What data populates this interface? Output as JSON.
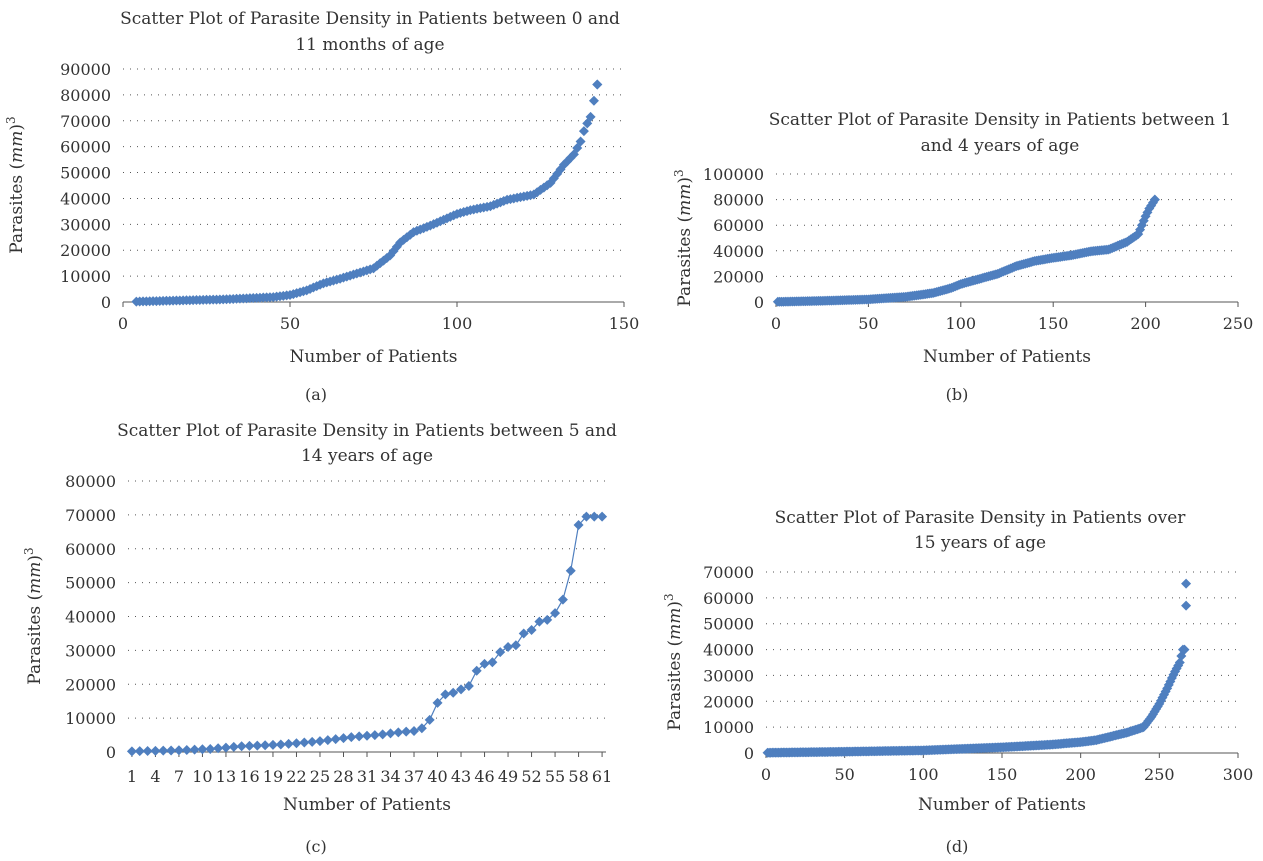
{
  "colors": {
    "marker": "#4f7fbf",
    "axis": "#555555",
    "text": "#333333"
  },
  "panels": [
    {
      "caption": "(a)",
      "title_lines": [
        "Scatter Plot of Parasite Density in Patients between 0 and",
        "11 months of age"
      ],
      "xlabel": "Number of Patients",
      "ylabel_main": "Parasites (",
      "ylabel_unit": "mm",
      "ylabel_close": ")",
      "ylabel_sup": "3",
      "xticks": [
        "0",
        "50",
        "100",
        "150"
      ],
      "yticks": [
        "0",
        "10000",
        "20000",
        "30000",
        "40000",
        "50000",
        "60000",
        "70000",
        "80000",
        "90000"
      ]
    },
    {
      "caption": "(b)",
      "title_lines": [
        "Scatter Plot of Parasite Density in Patients between 1",
        "and 4 years of age"
      ],
      "xlabel": "Number of Patients",
      "ylabel_main": "Parasites (",
      "ylabel_unit": "mm",
      "ylabel_close": ")",
      "ylabel_sup": "3",
      "xticks": [
        "0",
        "50",
        "100",
        "150",
        "200",
        "250"
      ],
      "yticks": [
        "0",
        "20000",
        "40000",
        "60000",
        "80000",
        "100000"
      ]
    },
    {
      "caption": "(c)",
      "title_lines": [
        "Scatter Plot of Parasite Density in Patients between 5 and",
        "14 years of age"
      ],
      "xlabel": "Number of Patients",
      "ylabel_main": "Parasites (",
      "ylabel_unit": "mm",
      "ylabel_close": ")",
      "ylabel_sup": "3",
      "xticks": [
        "1",
        "4",
        "7",
        "10",
        "13",
        "16",
        "19",
        "22",
        "25",
        "28",
        "31",
        "34",
        "37",
        "40",
        "43",
        "46",
        "49",
        "52",
        "55",
        "58",
        "61"
      ],
      "yticks": [
        "0",
        "10000",
        "20000",
        "30000",
        "40000",
        "50000",
        "60000",
        "70000",
        "80000"
      ]
    },
    {
      "caption": "(d)",
      "title_lines": [
        "Scatter Plot of Parasite Density in Patients over",
        "15 years of age"
      ],
      "xlabel": "Number of Patients",
      "ylabel_main": "Parasites (",
      "ylabel_unit": "mm",
      "ylabel_close": ")",
      "ylabel_sup": "3",
      "xticks": [
        "0",
        "50",
        "100",
        "150",
        "200",
        "250",
        "300"
      ],
      "yticks": [
        "0",
        "10000",
        "20000",
        "30000",
        "40000",
        "50000",
        "60000",
        "70000"
      ]
    }
  ],
  "chart_data": [
    {
      "type": "scatter",
      "title": "Scatter Plot of Parasite Density in Patients between 0 and 11 months of age",
      "xlabel": "Number of Patients",
      "ylabel": "Parasites (mm)3",
      "xlim": [
        0,
        150
      ],
      "ylim": [
        0,
        90000
      ],
      "grid": true,
      "legend": "none",
      "x_range": [
        4,
        142
      ],
      "anchors": [
        [
          4,
          150
        ],
        [
          20,
          700
        ],
        [
          30,
          1000
        ],
        [
          45,
          1900
        ],
        [
          50,
          2700
        ],
        [
          55,
          4500
        ],
        [
          60,
          7200
        ],
        [
          65,
          9000
        ],
        [
          70,
          11000
        ],
        [
          75,
          13000
        ],
        [
          80,
          18000
        ],
        [
          83,
          23000
        ],
        [
          87,
          27000
        ],
        [
          92,
          29500
        ],
        [
          100,
          34000
        ],
        [
          104,
          35500
        ],
        [
          110,
          37000
        ],
        [
          115,
          39500
        ],
        [
          123,
          41500
        ],
        [
          128,
          46000
        ],
        [
          132,
          53000
        ],
        [
          135,
          57000
        ],
        [
          137,
          62000
        ],
        [
          138,
          66000
        ],
        [
          139,
          69000
        ],
        [
          140,
          71500
        ],
        [
          142,
          84000
        ]
      ]
    },
    {
      "type": "scatter",
      "title": "Scatter Plot of Parasite Density in Patients between 1 and 4 years of age",
      "xlabel": "Number of Patients",
      "ylabel": "Parasites (mm)3",
      "xlim": [
        0,
        250
      ],
      "ylim": [
        0,
        100000
      ],
      "grid": true,
      "legend": "none",
      "x_range": [
        1,
        205
      ],
      "anchors": [
        [
          1,
          150
        ],
        [
          25,
          900
        ],
        [
          50,
          2000
        ],
        [
          70,
          4000
        ],
        [
          85,
          7000
        ],
        [
          95,
          11000
        ],
        [
          100,
          14000
        ],
        [
          110,
          18000
        ],
        [
          120,
          22000
        ],
        [
          130,
          28000
        ],
        [
          140,
          32000
        ],
        [
          150,
          34500
        ],
        [
          160,
          36500
        ],
        [
          170,
          39500
        ],
        [
          180,
          41000
        ],
        [
          190,
          47000
        ],
        [
          196,
          53000
        ],
        [
          198,
          60000
        ],
        [
          200,
          67000
        ],
        [
          202,
          73000
        ],
        [
          205,
          80000
        ]
      ]
    },
    {
      "type": "line",
      "title": "Scatter Plot of Parasite Density in Patients between 5 and 14 years of age",
      "xlabel": "Number of Patients",
      "ylabel": "Parasites (mm)3",
      "xlim": [
        1,
        61
      ],
      "ylim": [
        0,
        80000
      ],
      "grid": true,
      "legend": "none",
      "x": [
        1,
        2,
        3,
        4,
        5,
        6,
        7,
        8,
        9,
        10,
        11,
        12,
        13,
        14,
        15,
        16,
        17,
        18,
        19,
        20,
        21,
        22,
        23,
        24,
        25,
        26,
        27,
        28,
        29,
        30,
        31,
        32,
        33,
        34,
        35,
        36,
        37,
        38,
        39,
        40,
        41,
        42,
        43,
        44,
        45,
        46,
        47,
        48,
        49,
        50,
        51,
        52,
        53,
        54,
        55,
        56,
        57,
        58,
        59,
        60,
        61
      ],
      "y": [
        200,
        250,
        300,
        350,
        400,
        450,
        500,
        600,
        700,
        800,
        900,
        1100,
        1300,
        1500,
        1700,
        1800,
        1900,
        2000,
        2100,
        2200,
        2400,
        2600,
        2800,
        3000,
        3200,
        3500,
        3800,
        4100,
        4400,
        4600,
        4800,
        5000,
        5200,
        5500,
        5800,
        6000,
        6200,
        7000,
        9500,
        14500,
        17000,
        17500,
        18500,
        19500,
        24000,
        26000,
        26500,
        29500,
        31000,
        31500,
        35000,
        36000,
        38500,
        39000,
        41000,
        45000,
        53500,
        67000,
        69500,
        69500,
        69500
      ]
    },
    {
      "type": "scatter",
      "title": "Scatter Plot of Parasite Density in Patients over 15 years of age",
      "xlabel": "Number of Patients",
      "ylabel": "Parasites (mm)3",
      "xlim": [
        0,
        300
      ],
      "ylim": [
        0,
        70000
      ],
      "grid": true,
      "legend": "none",
      "x_range": [
        1,
        267
      ],
      "anchors": [
        [
          1,
          100
        ],
        [
          50,
          500
        ],
        [
          100,
          1000
        ],
        [
          150,
          2200
        ],
        [
          180,
          3200
        ],
        [
          200,
          4200
        ],
        [
          210,
          5000
        ],
        [
          220,
          6500
        ],
        [
          230,
          8000
        ],
        [
          240,
          10000
        ],
        [
          245,
          14000
        ],
        [
          250,
          19000
        ],
        [
          255,
          25000
        ],
        [
          258,
          29000
        ],
        [
          260,
          31500
        ],
        [
          263,
          35000
        ],
        [
          265,
          40000
        ],
        [
          266,
          40000
        ],
        [
          267,
          57000
        ],
        [
          267,
          65500
        ]
      ]
    }
  ]
}
